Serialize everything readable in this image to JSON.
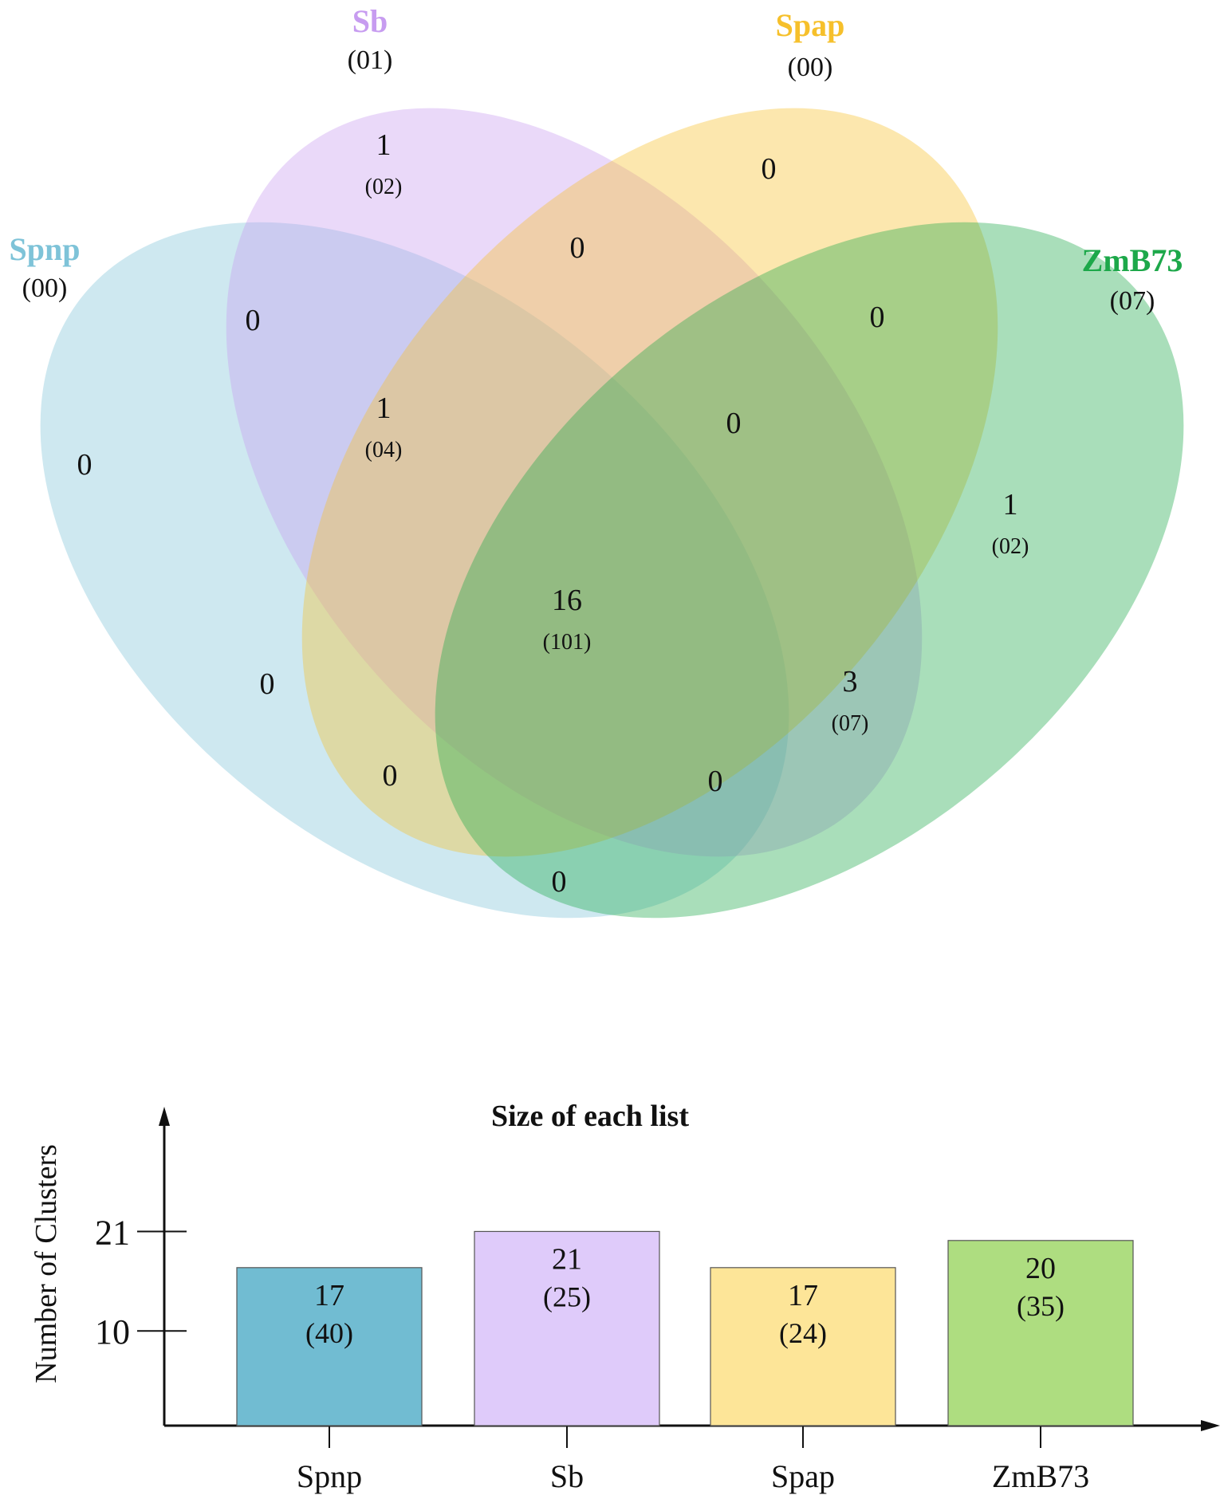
{
  "chart_data": [
    {
      "type": "venn",
      "sets": [
        {
          "name": "Spnp",
          "value": "(00)",
          "color": "#7ec3d8"
        },
        {
          "name": "Sb",
          "value": "(01)",
          "color": "#c79cf0"
        },
        {
          "name": "Spap",
          "value": "(00)",
          "color": "#f6c02b"
        },
        {
          "name": "ZmB73",
          "value": "(07)",
          "color": "#1da84a"
        }
      ],
      "regions": [
        {
          "sets": [
            "Sb"
          ],
          "value": "1",
          "sub": "(02)"
        },
        {
          "sets": [
            "Spap"
          ],
          "value": "0",
          "sub": ""
        },
        {
          "sets": [
            "Sb",
            "Spap"
          ],
          "value": "0",
          "sub": ""
        },
        {
          "sets": [
            "Spnp",
            "Sb"
          ],
          "value": "0",
          "sub": ""
        },
        {
          "sets": [
            "Spap",
            "ZmB73"
          ],
          "value": "0",
          "sub": ""
        },
        {
          "sets": [
            "Spnp",
            "Sb",
            "Spap"
          ],
          "value": "1",
          "sub": "(04)"
        },
        {
          "sets": [
            "Sb",
            "Spap",
            "ZmB73"
          ],
          "value": "0",
          "sub": ""
        },
        {
          "sets": [
            "Spnp"
          ],
          "value": "0",
          "sub": ""
        },
        {
          "sets": [
            "ZmB73"
          ],
          "value": "1",
          "sub": "(02)"
        },
        {
          "sets": [
            "Spnp",
            "Sb",
            "Spap",
            "ZmB73"
          ],
          "value": "16",
          "sub": "(101)"
        },
        {
          "sets": [
            "Spnp",
            "Spap"
          ],
          "value": "0",
          "sub": ""
        },
        {
          "sets": [
            "Sb",
            "ZmB73"
          ],
          "value": "3",
          "sub": "(07)"
        },
        {
          "sets": [
            "Spnp",
            "Spap",
            "ZmB73"
          ],
          "value": "0",
          "sub": ""
        },
        {
          "sets": [
            "Spnp",
            "Sb",
            "ZmB73"
          ],
          "value": "0",
          "sub": ""
        },
        {
          "sets": [
            "Spnp",
            "ZmB73"
          ],
          "value": "0",
          "sub": ""
        }
      ]
    },
    {
      "type": "bar",
      "title": "Size of each list",
      "xlabel": "",
      "ylabel": "Number of Clusters",
      "categories": [
        "Spnp",
        "Sb",
        "Spap",
        "ZmB73"
      ],
      "values": [
        17,
        21,
        17,
        20
      ],
      "sublabels": [
        "(40)",
        "(25)",
        "(24)",
        "(35)"
      ],
      "colors": [
        "#71bcd2",
        "#dfcbfa",
        "#fde598",
        "#aedd80"
      ],
      "yticks": [
        10,
        21
      ],
      "ylim": [
        0,
        21
      ]
    }
  ]
}
